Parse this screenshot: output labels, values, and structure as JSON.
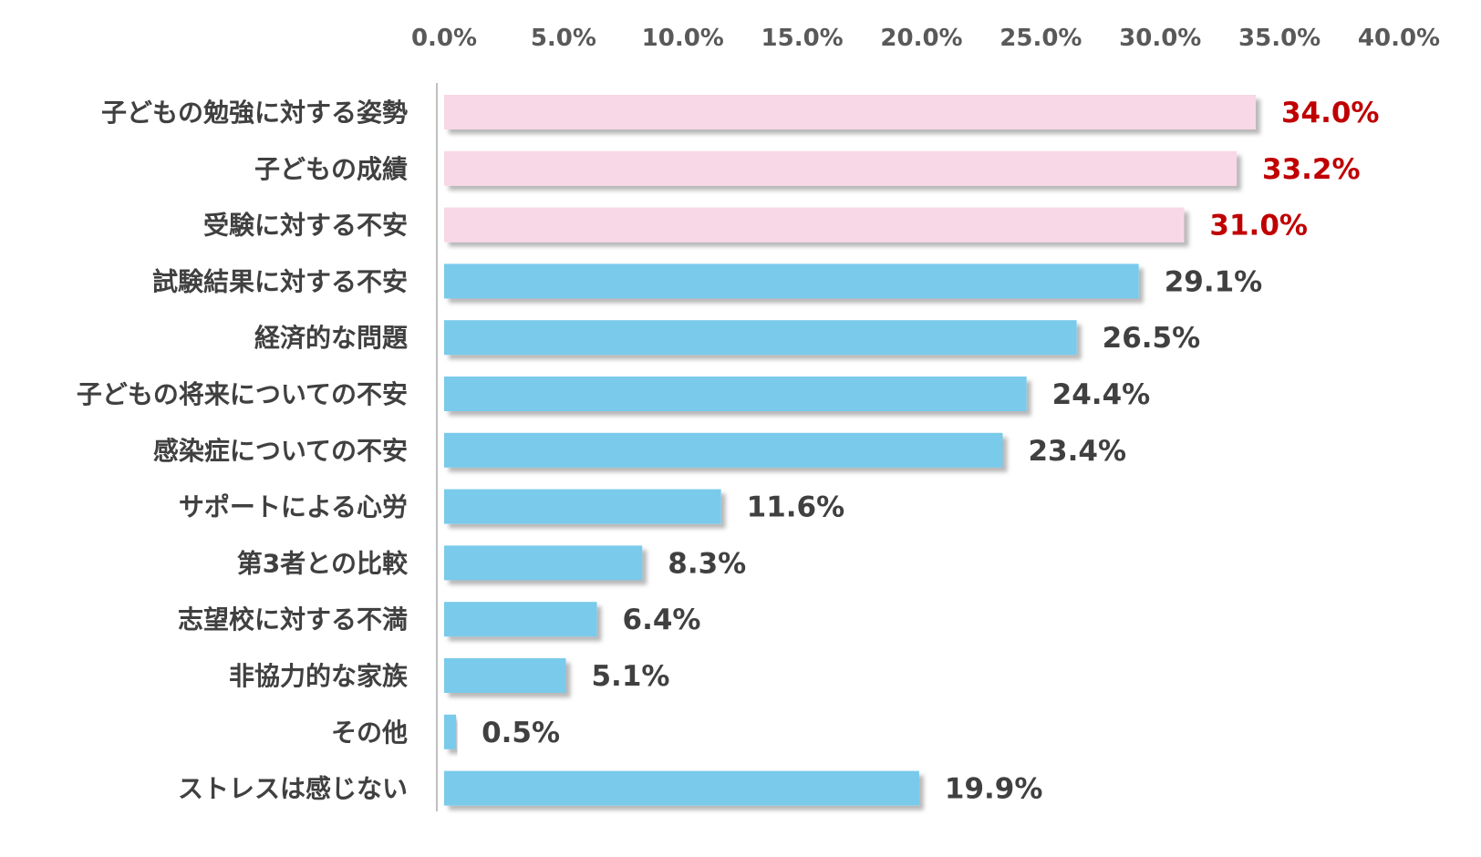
{
  "chart_data": {
    "type": "bar",
    "orientation": "horizontal",
    "categories": [
      "子どもの勉強に対する姿勢",
      "子どもの成績",
      "受験に対する不安",
      "試験結果に対する不安",
      "経済的な問題",
      "子どもの将来についての不安",
      "感染症についての不安",
      "サポートによる心労",
      "第3者との比較",
      "志望校に対する不満",
      "非協力的な家族",
      "その他",
      "ストレスは感じない"
    ],
    "values": [
      34.0,
      33.2,
      31.0,
      29.1,
      26.5,
      24.4,
      23.4,
      11.6,
      8.3,
      6.4,
      5.1,
      0.5,
      19.9
    ],
    "value_labels": [
      "34.0%",
      "33.2%",
      "31.0%",
      "29.1%",
      "26.5%",
      "24.4%",
      "23.4%",
      "11.6%",
      "8.3%",
      "6.4%",
      "5.1%",
      "0.5%",
      "19.9%"
    ],
    "highlighted_top_n": 3,
    "xlim": [
      0,
      40
    ],
    "x_ticks": [
      "0.0%",
      "5.0%",
      "10.0%",
      "15.0%",
      "20.0%",
      "25.0%",
      "30.0%",
      "35.0%",
      "40.0%"
    ],
    "x_axis_position": "top",
    "grid": false,
    "legend": "none",
    "title": "",
    "xlabel": "",
    "ylabel": "",
    "colors": {
      "highlight_bar": "#F8D7E6",
      "normal_bar": "#79CAEB",
      "highlight_label": "#C00000",
      "normal_label": "#404040",
      "category_label": "#404040",
      "tick_label": "#595959",
      "axis_line": "#BFBFBF"
    }
  }
}
